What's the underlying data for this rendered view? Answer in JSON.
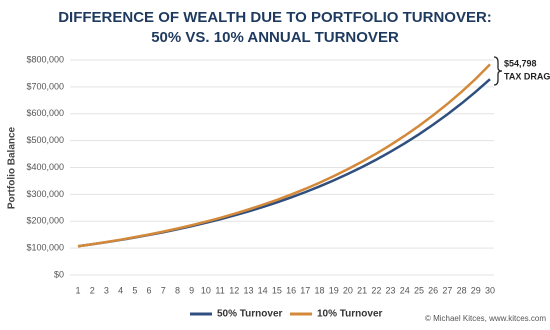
{
  "chart_data": {
    "type": "line",
    "title": [
      "DIFFERENCE OF WEALTH DUE TO PORTFOLIO TURNOVER:",
      "50% VS. 10% ANNUAL TURNOVER"
    ],
    "y_label": "Portfolio Balance",
    "x": [
      1,
      2,
      3,
      4,
      5,
      6,
      7,
      8,
      9,
      10,
      11,
      12,
      13,
      14,
      15,
      16,
      17,
      18,
      19,
      20,
      21,
      22,
      23,
      24,
      25,
      26,
      27,
      28,
      29,
      30
    ],
    "xlim": [
      1,
      30
    ],
    "xticks": [
      1,
      2,
      3,
      4,
      5,
      6,
      7,
      8,
      9,
      10,
      11,
      12,
      13,
      14,
      15,
      16,
      17,
      18,
      19,
      20,
      21,
      22,
      23,
      24,
      25,
      26,
      27,
      28,
      29,
      30
    ],
    "ylim": [
      0,
      800000
    ],
    "yticks": [
      {
        "value": 0,
        "label": "$0"
      },
      {
        "value": 100000,
        "label": "$100,000"
      },
      {
        "value": 200000,
        "label": "$200,000"
      },
      {
        "value": 300000,
        "label": "$300,000"
      },
      {
        "value": 400000,
        "label": "$400,000"
      },
      {
        "value": 500000,
        "label": "$500,000"
      },
      {
        "value": 600000,
        "label": "$600,000"
      },
      {
        "value": 700000,
        "label": "$700,000"
      },
      {
        "value": 800000,
        "label": "$800,000"
      }
    ],
    "grid": true,
    "series": [
      {
        "name": "50% Turnover",
        "color": "#2f4f7f",
        "values": [
          107000,
          114300,
          122100,
          130500,
          139400,
          149000,
          159200,
          170000,
          181700,
          194100,
          207400,
          221600,
          236700,
          252900,
          270200,
          288700,
          308400,
          329500,
          352100,
          376200,
          401900,
          429400,
          458700,
          490100,
          523600,
          559400,
          597700,
          638500,
          682200,
          728800
        ]
      },
      {
        "name": "10% Turnover",
        "color": "#d4893a",
        "values": [
          107000,
          114600,
          122700,
          131400,
          140800,
          150800,
          161500,
          172900,
          185200,
          198400,
          212400,
          227500,
          243700,
          261000,
          279500,
          299300,
          320600,
          343400,
          367700,
          393800,
          421800,
          451700,
          483800,
          518200,
          554900,
          594300,
          636500,
          681700,
          730100,
          783600
        ]
      }
    ],
    "annotation": {
      "amount": "$54,798",
      "label": "TAX DRAG"
    },
    "source": "© Michael Kitces, www.kitces.com"
  }
}
